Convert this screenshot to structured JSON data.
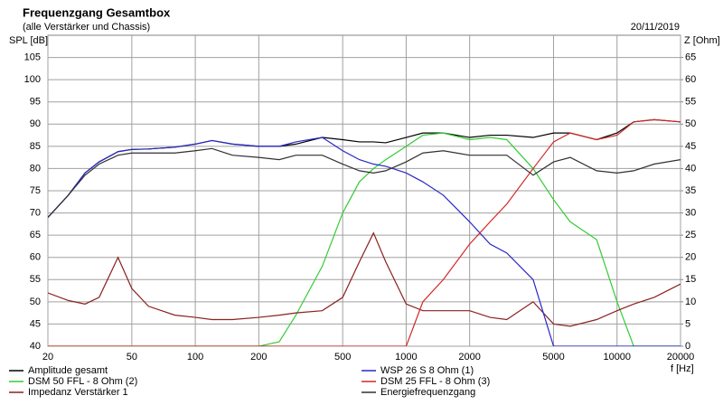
{
  "chart_data": {
    "type": "line",
    "title": "Frequenzgang Gesamtbox",
    "subtitle": "(alle Verstärker und Chassis)",
    "date": "20/11/2019",
    "y_label": "SPL [dB]",
    "y2_label": "Z [Ohm]",
    "x_label": "f [Hz]",
    "x_scale": "log",
    "grid": true,
    "x": [
      20,
      25,
      30,
      35,
      43,
      50,
      60,
      80,
      100,
      120,
      150,
      200,
      250,
      300,
      400,
      500,
      600,
      700,
      800,
      1000,
      1200,
      1500,
      2000,
      2500,
      3000,
      4000,
      5000,
      6000,
      8000,
      10000,
      12000,
      15000,
      20000
    ],
    "xlim": [
      20,
      20000
    ],
    "xticks": [
      20,
      50,
      100,
      200,
      500,
      1000,
      2000,
      5000,
      10000,
      20000
    ],
    "ylim": [
      40,
      110
    ],
    "yticks": [
      40,
      45,
      50,
      55,
      60,
      65,
      70,
      75,
      80,
      85,
      90,
      95,
      100,
      105
    ],
    "y2lim": [
      0,
      70
    ],
    "y2ticks": [
      0,
      5,
      10,
      15,
      20,
      25,
      30,
      35,
      40,
      45,
      50,
      55,
      60,
      65
    ],
    "series": [
      {
        "name": "Amplitude gesamt",
        "color": "#000000",
        "values": [
          69,
          74,
          79,
          81.5,
          83.8,
          84.3,
          84.4,
          84.8,
          85.5,
          86.3,
          85.5,
          85,
          85,
          85.5,
          87,
          86.5,
          86,
          86,
          85.8,
          87,
          88,
          88,
          87,
          87.5,
          87.5,
          87,
          88,
          88,
          86.5,
          88,
          90.5,
          91,
          90.5
        ]
      },
      {
        "name": "DSM 50 FFL - 8 Ohm (2)",
        "color": "#33cc33",
        "values": [
          40,
          40,
          40,
          40,
          40,
          40,
          40,
          40,
          40,
          40,
          40,
          40,
          41,
          47,
          58,
          70,
          77,
          80,
          82,
          85,
          87.5,
          88,
          86.5,
          87,
          86.5,
          80,
          73,
          68,
          64,
          50,
          40,
          40,
          40
        ]
      },
      {
        "name": "Impedanz Verstärker 1",
        "color": "#8b2020",
        "axis": "y2",
        "values": [
          12,
          10.3,
          9.5,
          11,
          20,
          13,
          9,
          7,
          6.5,
          6,
          6,
          6.5,
          7,
          7.5,
          8,
          11,
          19,
          25.5,
          19,
          9.5,
          8,
          8,
          8,
          6.5,
          6,
          10,
          5,
          4.5,
          6,
          8,
          9.5,
          11,
          14
        ]
      },
      {
        "name": "WSP 26 S 8 Ohm (1)",
        "color": "#2828c8",
        "values": [
          69,
          74,
          79,
          81.5,
          83.8,
          84.3,
          84.4,
          84.8,
          85.5,
          86.3,
          85.5,
          85,
          85,
          86,
          87,
          84,
          82,
          81,
          80.5,
          79,
          77,
          74,
          68,
          63,
          61,
          55,
          40,
          40,
          40,
          40,
          40,
          40,
          40
        ]
      },
      {
        "name": "DSM 25 FFL - 8 Ohm (3)",
        "color": "#d02828",
        "values": [
          40,
          40,
          40,
          40,
          40,
          40,
          40,
          40,
          40,
          40,
          40,
          40,
          40,
          40,
          40,
          40,
          40,
          40,
          40,
          40,
          50,
          55,
          63,
          68,
          72,
          80,
          86,
          88,
          86.5,
          87.5,
          90.5,
          91,
          90.5
        ]
      },
      {
        "name": "Energiefrequenzgang",
        "color": "#303030",
        "values": [
          69,
          74,
          78.5,
          81,
          83,
          83.5,
          83.5,
          83.5,
          84,
          84.5,
          83,
          82.5,
          82,
          83,
          83,
          81,
          79.5,
          79,
          79.5,
          81.5,
          83.5,
          84,
          83,
          83,
          83,
          78.5,
          81.5,
          82.5,
          79.5,
          79,
          79.5,
          81,
          82
        ]
      }
    ]
  }
}
